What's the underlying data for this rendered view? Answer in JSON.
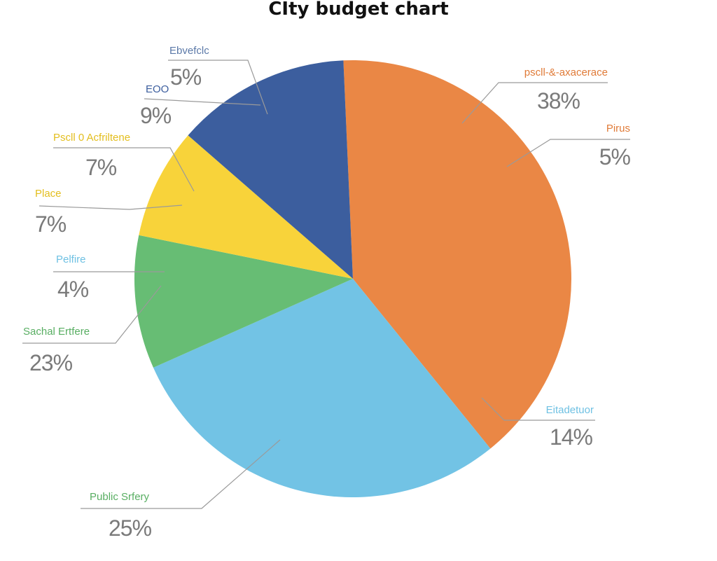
{
  "chart_data": {
    "type": "pie",
    "title": "CIty budget chart",
    "slices": [
      {
        "label": "pscll-&-axacerace",
        "percent_label": "38%",
        "value": 38,
        "color": "#EA8745",
        "start_deg": 357.5,
        "end_deg": 501,
        "anchor_deg": 60
      },
      {
        "label": "Pirus",
        "percent_label": "5%",
        "value": 5,
        "color": "#EA8745",
        "start_deg": 357.5,
        "end_deg": 501,
        "anchor_deg": 115
      },
      {
        "label": "Eitadetuor",
        "percent_label": "14%",
        "value": 14,
        "color": "#72C3E5",
        "start_deg": 141,
        "end_deg": 246,
        "anchor_deg": 141
      },
      {
        "label": "Public Srfery",
        "percent_label": "25%",
        "value": 25,
        "color": "#72C3E5",
        "start_deg": 141,
        "end_deg": 246,
        "anchor_deg": 215
      },
      {
        "label": "Sachal Ertfere",
        "percent_label": "23%",
        "value": 23,
        "color": "#67BD74",
        "start_deg": 246,
        "end_deg": 281.5,
        "anchor_deg": 253
      },
      {
        "label": "Pelfire",
        "percent_label": "4%",
        "value": 4,
        "color": "#67BD74",
        "start_deg": 246,
        "end_deg": 281.5,
        "anchor_deg": 275
      },
      {
        "label": "Place",
        "percent_label": "7%",
        "value": 7,
        "color": "#F8D33A",
        "start_deg": 281.5,
        "end_deg": 311,
        "anchor_deg": 286
      },
      {
        "label": "Pscll 0 Acfriltene",
        "percent_label": "7%",
        "value": 7,
        "color": "#F8D33A",
        "start_deg": 281.5,
        "end_deg": 311,
        "anchor_deg": 304
      },
      {
        "label": "EOO",
        "percent_label": "9%",
        "value": 9,
        "color": "#3C5E9E",
        "start_deg": 311,
        "end_deg": 357.5,
        "anchor_deg": 325
      },
      {
        "label": "Ebvefclc",
        "percent_label": "5%",
        "value": 5,
        "color": "#3C5E9E",
        "start_deg": 311,
        "end_deg": 357.5,
        "anchor_deg": 343
      }
    ],
    "sectors": [
      {
        "color": "#EA8745",
        "start_deg": 357.5,
        "end_deg": 501
      },
      {
        "color": "#72C3E5",
        "start_deg": 141,
        "end_deg": 246
      },
      {
        "color": "#67BD74",
        "start_deg": 246,
        "end_deg": 281.5
      },
      {
        "color": "#F8D33A",
        "start_deg": 281.5,
        "end_deg": 311
      },
      {
        "color": "#3C5E9E",
        "start_deg": 311,
        "end_deg": 357.5
      }
    ],
    "label_colors": {
      "pscll-&-axacerace": "#E07B38",
      "Pirus": "#E07B38",
      "Eitadetuor": "#6FC1E3",
      "Public Srfery": "#58AE62",
      "Sachal Ertfere": "#58AE62",
      "Pelfire": "#6FC1E3",
      "Place": "#E3BE1E",
      "Pscll 0 Acfriltene": "#E3BE1E",
      "EOO": "#3C5E9E",
      "Ebvefclc": "#5B79A8"
    }
  }
}
